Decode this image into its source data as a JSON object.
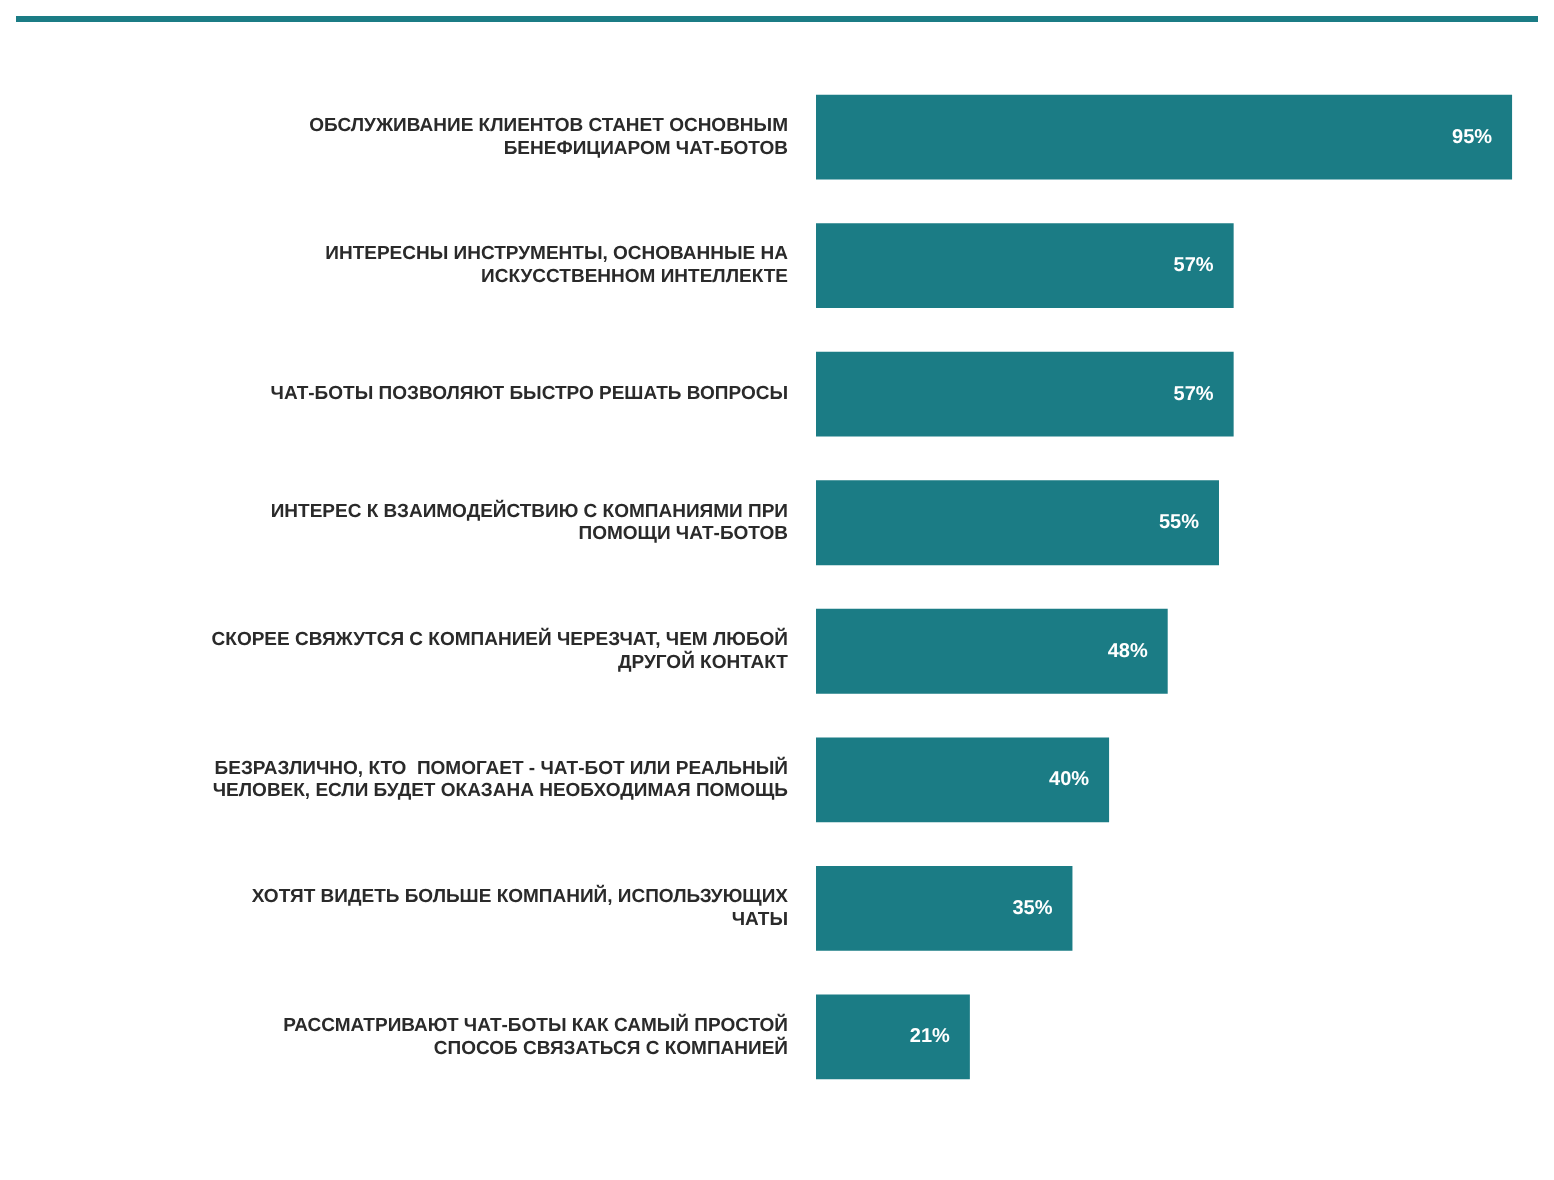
{
  "chart_data": {
    "type": "bar",
    "orientation": "horizontal",
    "categories": [
      "ОБСЛУЖИВАНИЕ КЛИЕНТОВ СТАНЕТ ОСНОВНЫМ БЕНЕФИЦИАРОМ ЧАТ-БОТОВ",
      "ИНТЕРЕСНЫ ИНСТРУМЕНТЫ, ОСНОВАННЫЕ НА ИСКУССТВЕННОМ ИНТЕЛЛЕКТЕ",
      "ЧАТ-БОТЫ ПОЗВОЛЯЮТ БЫСТРО РЕШАТЬ ВОПРОСЫ",
      "ИНТЕРЕС К ВЗАИМОДЕЙСТВИЮ С КОМПАНИЯМИ ПРИ ПОМОЩИ ЧАТ-БОТОВ",
      "СКОРЕЕ СВЯЖУТСЯ С КОМПАНИЕЙ ЧЕРЕЗЧАТ, ЧЕМ ЛЮБОЙ ДРУГОЙ КОНТАКТ",
      "БЕЗРАЗЛИЧНО, КТО  ПОМОГАЕТ - ЧАТ-БОТ ИЛИ РЕАЛЬНЫЙ ЧЕЛОВЕК, ЕСЛИ БУДЕТ ОКАЗАНА НЕОБХОДИМАЯ ПОМОЩЬ",
      "ХОТЯТ ВИДЕТЬ БОЛЬШЕ КОМПАНИЙ, ИСПОЛЬЗУЮЩИХ ЧАТЫ",
      "РАССМАТРИВАЮТ ЧАТ-БОТЫ КАК САМЫЙ ПРОСТОЙ СПОСОБ СВЯЗАТЬСЯ С КОМПАНИЕЙ"
    ],
    "values": [
      95,
      57,
      57,
      55,
      48,
      40,
      35,
      21
    ],
    "value_labels": [
      "95%",
      "57%",
      "57%",
      "55%",
      "48%",
      "40%",
      "35%",
      "21%"
    ],
    "color": "#1b7c85",
    "legend": false,
    "tick_labels": "y"
  }
}
